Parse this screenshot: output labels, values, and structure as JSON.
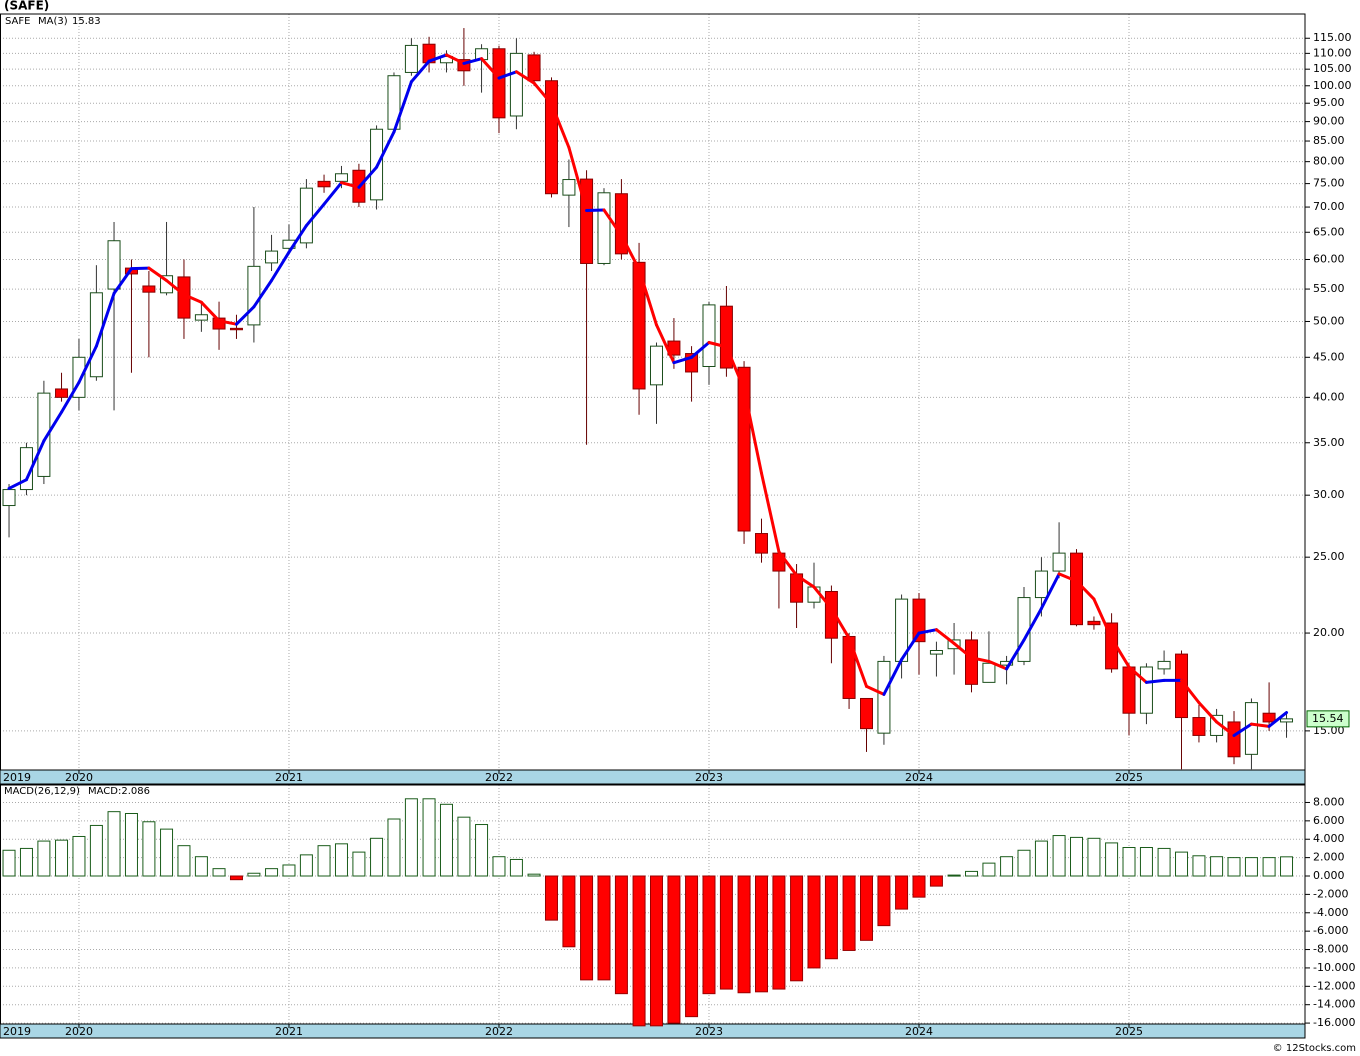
{
  "footer": "© 12Stocks.com",
  "chart_data": [
    {
      "type": "candlestick",
      "title": "(SAFE)",
      "symbol": "SAFE",
      "log_scale": true,
      "grid": true,
      "up_color": "#ffffff",
      "down_color": "#ff0000",
      "edge_color": "#1a4d1a",
      "wick_color": "#333333",
      "strip_color": "#a9d6e5",
      "last_box_color": "#ccffcc",
      "x": [
        2019.667,
        2019.75,
        2019.833,
        2019.917,
        2020,
        2020.083,
        2020.167,
        2020.25,
        2020.333,
        2020.417,
        2020.5,
        2020.583,
        2020.667,
        2020.75,
        2020.833,
        2020.917,
        2021,
        2021.083,
        2021.167,
        2021.25,
        2021.333,
        2021.417,
        2021.5,
        2021.583,
        2021.667,
        2021.75,
        2021.833,
        2021.917,
        2022,
        2022.083,
        2022.167,
        2022.25,
        2022.333,
        2022.417,
        2022.5,
        2022.583,
        2022.667,
        2022.75,
        2022.833,
        2022.917,
        2023,
        2023.083,
        2023.167,
        2023.25,
        2023.333,
        2023.417,
        2023.5,
        2023.583,
        2023.667,
        2023.75,
        2023.833,
        2023.917,
        2024,
        2024.083,
        2024.167,
        2024.25,
        2024.333,
        2024.417,
        2024.5,
        2024.583,
        2024.667,
        2024.75,
        2024.833,
        2024.917,
        2025,
        2025.083,
        2025.167,
        2025.25,
        2025.333,
        2025.417,
        2025.5,
        2025.583,
        2025.667,
        2025.75
      ],
      "open": [
        29.1,
        30.5,
        31.7,
        41,
        40,
        42.5,
        55,
        58.5,
        55.5,
        54.4,
        57,
        50.2,
        50.5,
        49,
        49.5,
        59.4,
        62,
        63,
        75.5,
        75.5,
        78,
        71.5,
        88,
        104,
        113,
        107,
        108,
        108,
        111.5,
        91.5,
        109.5,
        101.5,
        72.5,
        76,
        59.3,
        72.8,
        59.5,
        41.5,
        47.2,
        45.5,
        43.8,
        52.3,
        43.7,
        26.8,
        25.3,
        23.8,
        21.9,
        22.6,
        19.8,
        16.5,
        14.9,
        18.4,
        22.1,
        18.8,
        19.1,
        19.6,
        17.3,
        18.2,
        18.4,
        22.2,
        24,
        25.3,
        20.7,
        20.6,
        18.1,
        15.8,
        18,
        18.8,
        15.6,
        14.8,
        15.4,
        14,
        15.8,
        15.4
      ],
      "high": [
        31,
        35,
        42,
        43,
        47.5,
        59,
        67,
        60,
        58,
        67,
        60,
        53,
        53,
        51,
        70,
        64.5,
        66.5,
        76,
        77,
        79,
        79.5,
        89,
        104,
        115,
        115.5,
        111,
        118.5,
        113,
        112.5,
        115,
        110.5,
        102.5,
        80.5,
        78,
        74,
        76,
        63,
        47,
        50.5,
        46.5,
        53,
        55.5,
        44.5,
        28,
        25.6,
        24.5,
        24.6,
        23,
        20,
        16.5,
        18.7,
        22.4,
        22.5,
        19.5,
        20.6,
        20.1,
        20.1,
        18.7,
        22.9,
        25,
        27.7,
        25.6,
        21,
        21.2,
        18.3,
        18.3,
        19,
        19,
        16.2,
        16,
        15.9,
        16.5,
        17.3,
        15.9
      ],
      "low": [
        26.5,
        30,
        31,
        39.5,
        38.5,
        42,
        38.5,
        43,
        45,
        54,
        47.5,
        48.5,
        46,
        47.5,
        47,
        58,
        61,
        62,
        73,
        74,
        70,
        69.5,
        87,
        103,
        104,
        104,
        100,
        98,
        87,
        88,
        100,
        72,
        66,
        34.8,
        59,
        60,
        38,
        37,
        43.5,
        39.5,
        41.5,
        42.5,
        26,
        24.6,
        21.5,
        20.3,
        21.5,
        18.3,
        16,
        14.1,
        14.4,
        17.5,
        17.7,
        17.6,
        17.7,
        16.8,
        17.3,
        17.2,
        18.2,
        21,
        23.5,
        20.4,
        20.2,
        17.8,
        14.8,
        15.3,
        17.7,
        13.4,
        14.5,
        14.5,
        13.6,
        13.4,
        15,
        14.7
      ],
      "close": [
        30.5,
        34.5,
        40.5,
        40,
        45,
        54.4,
        63.4,
        57.5,
        54.5,
        57.2,
        50.5,
        51,
        48.9,
        48.8,
        58.8,
        61.5,
        63.5,
        74,
        74.3,
        77.2,
        71,
        88,
        103,
        112.6,
        107,
        109,
        104.5,
        111.5,
        91,
        110,
        101.5,
        72.8,
        75.9,
        59.3,
        73,
        61,
        41,
        46.5,
        45.3,
        43.1,
        52.5,
        43.6,
        27,
        25.3,
        24,
        21.9,
        22.9,
        19.7,
        16.5,
        15.1,
        18.4,
        22.1,
        19.5,
        19,
        19.6,
        17.2,
        18.3,
        18.4,
        22.2,
        24,
        25.3,
        20.5,
        20.5,
        18,
        15.8,
        18.1,
        18.4,
        15.6,
        14.8,
        15.7,
        13.9,
        16.3,
        15.4,
        15.54
      ],
      "ma": {
        "name": "MA(3)",
        "up_color": "#0000ee",
        "down_color": "#ff0000",
        "values": [
          30.6,
          31.4,
          35.2,
          38.3,
          41.8,
          46.5,
          54.3,
          58.4,
          58.5,
          56.4,
          54.1,
          52.9,
          50.1,
          49.6,
          52.2,
          56.4,
          61.3,
          66.3,
          70.6,
          75.2,
          74.2,
          78.7,
          87.3,
          101.2,
          107.5,
          109.5,
          106.8,
          108.3,
          102.3,
          104.2,
          100.8,
          94.8,
          83.4,
          69.3,
          69.4,
          64.4,
          58.3,
          49.5,
          44.3,
          45,
          47,
          46.4,
          41,
          32,
          25.4,
          23.7,
          22.9,
          21.5,
          19.7,
          17.1,
          16.7,
          18.5,
          20,
          20.2,
          19.4,
          18.6,
          18.4,
          18,
          19.6,
          21.5,
          23.8,
          23.3,
          22.1,
          19.7,
          18.1,
          17.3,
          17.4,
          17.4,
          16.3,
          15.4,
          14.8,
          15.3,
          15.2,
          15.83
        ]
      },
      "xlim": [
        2019.624,
        2025.838
      ],
      "xticks": [
        {
          "value": 2019,
          "label": "2019"
        },
        {
          "value": 2020,
          "label": "2020"
        },
        {
          "value": 2021,
          "label": "2021"
        },
        {
          "value": 2022,
          "label": "2022"
        },
        {
          "value": 2023,
          "label": "2023"
        },
        {
          "value": 2024,
          "label": "2024"
        },
        {
          "value": 2025,
          "label": "2025"
        }
      ],
      "ylim": [
        13.37,
        123.5
      ],
      "yticks": [
        {
          "value": 15,
          "label": "15.00"
        },
        {
          "value": 20,
          "label": "20.00"
        },
        {
          "value": 25,
          "label": "25.00"
        },
        {
          "value": 30,
          "label": "30.00"
        },
        {
          "value": 35,
          "label": "35.00"
        },
        {
          "value": 40,
          "label": "40.00"
        },
        {
          "value": 45,
          "label": "45.00"
        },
        {
          "value": 50,
          "label": "50.00"
        },
        {
          "value": 55,
          "label": "55.00"
        },
        {
          "value": 60,
          "label": "60.00"
        },
        {
          "value": 65,
          "label": "65.00"
        },
        {
          "value": 70,
          "label": "70.00"
        },
        {
          "value": 75,
          "label": "75.00"
        },
        {
          "value": 80,
          "label": "80.00"
        },
        {
          "value": 85,
          "label": "85.00"
        },
        {
          "value": 90,
          "label": "90.00"
        },
        {
          "value": 95,
          "label": "95.00"
        },
        {
          "value": 100,
          "label": "100.00"
        },
        {
          "value": 105,
          "label": "105.00"
        },
        {
          "value": 110,
          "label": "110.00"
        },
        {
          "value": 115,
          "label": "115.00"
        }
      ]
    },
    {
      "type": "bar",
      "grid": true,
      "pos_color": "#ffffff",
      "pos_edge": "#1a5c1a",
      "neg_color": "#ff0000",
      "neg_edge": "#990000",
      "series": [
        {
          "name": "MACD(26,12,9)",
          "label": "MACD:2.086",
          "values": [
            2.8,
            3,
            3.8,
            3.9,
            4.3,
            5.5,
            7,
            6.8,
            5.9,
            5.1,
            3.3,
            2.1,
            0.8,
            -0.4,
            0.3,
            0.8,
            1.2,
            2.3,
            3.3,
            3.5,
            2.6,
            4.1,
            6.2,
            8.4,
            8.4,
            7.8,
            6.4,
            5.6,
            2.1,
            1.8,
            0.2,
            -4.8,
            -7.7,
            -11.3,
            -11.3,
            -12.8,
            -16.3,
            -16.3,
            -16,
            -15.3,
            -12.8,
            -12.3,
            -12.7,
            -12.6,
            -12.3,
            -11.4,
            -10,
            -9,
            -8.1,
            -7,
            -5.4,
            -3.6,
            -2.3,
            -1.1,
            0.1,
            0.5,
            1.4,
            2.1,
            2.8,
            3.8,
            4.4,
            4.2,
            4.1,
            3.6,
            3.1,
            3.1,
            3,
            2.6,
            2.2,
            2.1,
            2,
            2,
            2,
            2.086
          ]
        }
      ],
      "ylim": [
        -16.1,
        9.9
      ],
      "yticks": [
        {
          "value": 8,
          "label": "8.000"
        },
        {
          "value": 6,
          "label": "6.000"
        },
        {
          "value": 4,
          "label": "4.000"
        },
        {
          "value": 2,
          "label": "2.000"
        },
        {
          "value": 0,
          "label": "0.000"
        },
        {
          "value": -2,
          "label": "-2.000"
        },
        {
          "value": -4,
          "label": "-4.000"
        },
        {
          "value": -6,
          "label": "-6.000"
        },
        {
          "value": -8,
          "label": "-8.000"
        },
        {
          "value": -10,
          "label": "-10.000"
        },
        {
          "value": -12,
          "label": "-12.000"
        },
        {
          "value": -14,
          "label": "-14.000"
        },
        {
          "value": -16,
          "label": "-16.000"
        }
      ]
    }
  ]
}
